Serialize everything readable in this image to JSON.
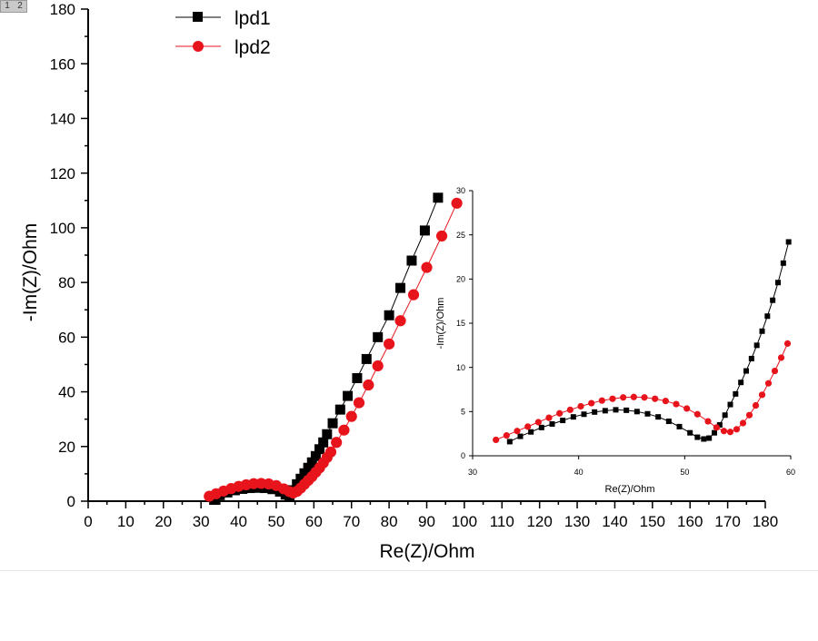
{
  "page_badge": {
    "left": "1",
    "right": "2"
  },
  "colors": {
    "series1": "#000000",
    "series2": "#e8141c",
    "axis": "#000000",
    "background": "#ffffff"
  },
  "chart_data": [
    {
      "type": "scatter",
      "mode": "lines+markers",
      "title": "",
      "xlabel": "Re(Z)/Ohm",
      "ylabel": "-Im(Z)/Ohm",
      "xlim": [
        0,
        180
      ],
      "ylim": [
        0,
        180
      ],
      "xticks": [
        0,
        10,
        20,
        30,
        40,
        50,
        60,
        70,
        80,
        90,
        100,
        110,
        120,
        130,
        140,
        150,
        160,
        170,
        180
      ],
      "yticks": [
        0,
        20,
        40,
        60,
        80,
        100,
        120,
        140,
        160,
        180
      ],
      "legend_position": "top-left",
      "series": [
        {
          "name": "lpd1",
          "marker": "square",
          "color": "#000000",
          "x": [
            33.5,
            35,
            37,
            39,
            41,
            43,
            45,
            47,
            49,
            51,
            52.5,
            53.5,
            54.5,
            55.5,
            56.5,
            57.5,
            58.5,
            59.5,
            60.5,
            61.5,
            62.5,
            63.5,
            65,
            67,
            69,
            71.5,
            74,
            77,
            80,
            83,
            86,
            89.5,
            93
          ],
          "y": [
            0.5,
            2.2,
            3.2,
            4.0,
            4.5,
            4.8,
            4.9,
            4.8,
            4.4,
            3.5,
            2.4,
            2.0,
            4.0,
            6.2,
            8.2,
            10.2,
            12.2,
            14.2,
            16.5,
            19.0,
            21.5,
            24.5,
            28.5,
            33.5,
            38.5,
            45,
            52,
            60,
            68,
            78,
            88,
            99,
            111
          ]
        },
        {
          "name": "lpd2",
          "marker": "circle",
          "color": "#e8141c",
          "x": [
            32.2,
            34,
            36,
            38,
            40,
            42,
            44,
            46,
            48,
            50,
            52,
            53.5,
            54.5,
            55.5,
            56.5,
            57.5,
            58.5,
            59.5,
            60.5,
            61.5,
            62.5,
            63.5,
            64.5,
            66,
            68,
            70,
            72,
            74.5,
            77,
            80,
            83,
            86.5,
            90,
            94,
            98
          ],
          "y": [
            1.8,
            2.7,
            3.7,
            4.6,
            5.4,
            6.0,
            6.4,
            6.5,
            6.3,
            5.7,
            4.5,
            3.5,
            3.0,
            3.6,
            4.8,
            6.2,
            7.6,
            9.0,
            10.6,
            12.2,
            14.0,
            16.0,
            18.0,
            21.5,
            26.0,
            31.0,
            36.0,
            42.5,
            49.5,
            57.5,
            66.0,
            75.5,
            85.5,
            97.0,
            109.0
          ]
        }
      ]
    },
    {
      "type": "scatter",
      "mode": "lines+markers",
      "title": "",
      "xlabel": "Re(Z)/Ohm",
      "ylabel": "-Im(Z)/Ohm",
      "xlim": [
        30,
        60
      ],
      "ylim": [
        0,
        30
      ],
      "xticks": [
        30,
        40,
        50,
        60
      ],
      "yticks": [
        0,
        5,
        10,
        15,
        20,
        25,
        30
      ],
      "series": [
        {
          "name": "lpd1",
          "marker": "square",
          "color": "#000000",
          "x": [
            33.5,
            34.5,
            35.5,
            36.5,
            37.5,
            38.5,
            39.5,
            40.5,
            41.5,
            42.5,
            43.5,
            44.5,
            45.5,
            46.5,
            47.5,
            48.5,
            49.5,
            50.5,
            51.2,
            51.8,
            52.3,
            52.8,
            53.3,
            53.8,
            54.3,
            54.8,
            55.3,
            55.8,
            56.3,
            56.8,
            57.3,
            57.8,
            58.3,
            58.8,
            59.3,
            59.8
          ],
          "y": [
            1.6,
            2.2,
            2.7,
            3.2,
            3.6,
            4.0,
            4.4,
            4.7,
            4.95,
            5.1,
            5.2,
            5.15,
            5.0,
            4.75,
            4.4,
            3.9,
            3.3,
            2.6,
            2.1,
            1.9,
            2.0,
            2.6,
            3.5,
            4.6,
            5.8,
            7.0,
            8.3,
            9.6,
            11.0,
            12.5,
            14.1,
            15.8,
            17.6,
            19.6,
            21.8,
            24.2
          ]
        },
        {
          "name": "lpd2",
          "marker": "circle",
          "color": "#e8141c",
          "x": [
            32.2,
            33.2,
            34.2,
            35.2,
            36.2,
            37.2,
            38.2,
            39.2,
            40.2,
            41.2,
            42.2,
            43.2,
            44.2,
            45.2,
            46.2,
            47.2,
            48.2,
            49.2,
            50.2,
            51.2,
            52.2,
            53,
            53.7,
            54.3,
            54.9,
            55.5,
            56.1,
            56.7,
            57.3,
            57.9,
            58.5,
            59.1,
            59.7
          ],
          "y": [
            1.8,
            2.3,
            2.8,
            3.3,
            3.8,
            4.3,
            4.8,
            5.2,
            5.6,
            5.95,
            6.25,
            6.45,
            6.6,
            6.65,
            6.6,
            6.45,
            6.2,
            5.85,
            5.35,
            4.7,
            3.9,
            3.2,
            2.8,
            2.7,
            3.0,
            3.7,
            4.6,
            5.7,
            6.9,
            8.2,
            9.6,
            11.1,
            12.7
          ]
        }
      ]
    }
  ]
}
